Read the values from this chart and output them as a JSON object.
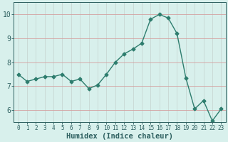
{
  "x": [
    0,
    1,
    2,
    3,
    4,
    5,
    6,
    7,
    8,
    9,
    10,
    11,
    12,
    13,
    14,
    15,
    16,
    17,
    18,
    19,
    20,
    21,
    22,
    23
  ],
  "y": [
    7.5,
    7.2,
    7.3,
    7.4,
    7.4,
    7.5,
    7.2,
    7.3,
    6.9,
    7.05,
    7.5,
    8.0,
    8.35,
    8.55,
    8.8,
    9.8,
    10.0,
    9.85,
    9.2,
    7.35,
    6.05,
    6.4,
    5.55,
    6.05
  ],
  "line_color": "#2e7d6e",
  "bg_color": "#d8f0ec",
  "grid_color_x": "#c8d8d4",
  "grid_color_y": "#d4a0a0",
  "xlabel": "Humidex (Indice chaleur)",
  "xlabel_color": "#2e6060",
  "tick_color": "#2e6060",
  "ylim": [
    5.5,
    10.5
  ],
  "xlim": [
    -0.5,
    23.5
  ],
  "yticks": [
    6,
    7,
    8,
    9,
    10
  ],
  "xticks": [
    0,
    1,
    2,
    3,
    4,
    5,
    6,
    7,
    8,
    9,
    10,
    11,
    12,
    13,
    14,
    15,
    16,
    17,
    18,
    19,
    20,
    21,
    22,
    23
  ],
  "marker": "D",
  "marker_size": 2.5,
  "line_width": 1.0
}
